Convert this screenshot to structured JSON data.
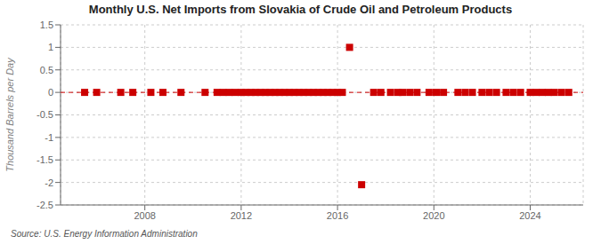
{
  "chart_data": {
    "type": "scatter",
    "title": "Monthly U.S. Net Imports from Slovakia of Crude Oil and Petroleum Products",
    "y_label": "Thousand Barrels per Day",
    "annotations": [
      "Source: U.S. Energy Information Administration"
    ],
    "xlim": [
      2004.5,
      2026.2
    ],
    "xticks": [
      2008,
      2012,
      2016,
      2020,
      2024
    ],
    "ylim": [
      -2.5,
      1.5
    ],
    "yticks": [
      -2.5,
      -2,
      -1.5,
      -1,
      -0.5,
      0,
      0.5,
      1,
      1.5
    ],
    "grid": true,
    "series": [
      {
        "type": "line",
        "line_style": "dashed",
        "color": "#cc0000",
        "x": [
          2004.5,
          2026.2
        ],
        "values": [
          0.0,
          0.0
        ]
      },
      {
        "type": "scatter",
        "marker": "square",
        "color": "#cc0000",
        "x": [
          2005.5,
          2006.0,
          2007.0,
          2007.5,
          2008.25,
          2008.75,
          2009.5,
          2010.5,
          2011.0,
          2011.25,
          2011.5,
          2011.75,
          2012.0,
          2012.2,
          2012.4,
          2012.6,
          2012.8,
          2013.0,
          2013.2,
          2013.4,
          2013.6,
          2013.8,
          2014.0,
          2014.2,
          2014.4,
          2014.6,
          2014.8,
          2015.0,
          2015.2,
          2015.4,
          2015.6,
          2015.8,
          2016.0,
          2016.2,
          2016.5,
          2017.0,
          2017.5,
          2017.8,
          2018.2,
          2018.5,
          2018.7,
          2019.0,
          2019.3,
          2019.8,
          2020.1,
          2020.4,
          2021.0,
          2021.3,
          2021.6,
          2022.0,
          2022.3,
          2022.6,
          2023.0,
          2023.3,
          2023.6,
          2024.0,
          2024.25,
          2024.5,
          2024.75,
          2025.0,
          2025.3,
          2025.6
        ],
        "values": [
          0.0,
          0.0,
          0.0,
          0.0,
          0.0,
          0.0,
          0.0,
          0.0,
          0.0,
          0.0,
          0.0,
          0.0,
          0.0,
          0.0,
          0.0,
          0.0,
          0.0,
          0.0,
          0.0,
          0.0,
          0.0,
          0.0,
          0.0,
          0.0,
          0.0,
          0.0,
          0.0,
          0.0,
          0.0,
          0.0,
          0.0,
          0.0,
          0.0,
          0.0,
          1.0,
          -2.05,
          0.0,
          0.0,
          0.0,
          0.0,
          0.0,
          0.0,
          0.0,
          0.0,
          0.0,
          0.0,
          0.0,
          0.0,
          0.0,
          0.0,
          0.0,
          0.0,
          0.0,
          0.0,
          0.0,
          0.0,
          0.0,
          0.0,
          0.0,
          0.0,
          0.0,
          0.0
        ]
      }
    ]
  }
}
